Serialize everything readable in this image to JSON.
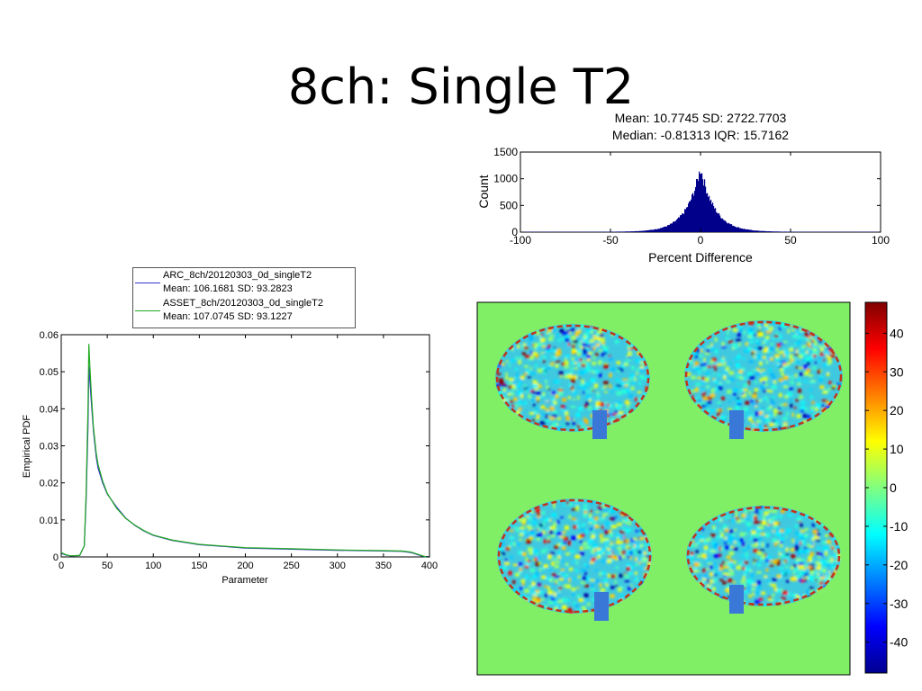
{
  "slide": {
    "title": "8ch: Single T2"
  },
  "chart_data": [
    {
      "id": "pdf",
      "type": "line",
      "xlabel": "Parameter",
      "ylabel": "Empirical PDF",
      "xlim": [
        0,
        400
      ],
      "ylim": [
        0,
        0.06
      ],
      "xticks": [
        0,
        50,
        100,
        150,
        200,
        250,
        300,
        350,
        400
      ],
      "yticks": [
        0,
        0.01,
        0.02,
        0.03,
        0.04,
        0.05,
        0.06
      ],
      "ytick_labels": [
        "0",
        "0.01",
        "0.02",
        "0.03",
        "0.04",
        "0.05",
        "0.06"
      ],
      "grid": false,
      "legend_position": "top-outside",
      "series": [
        {
          "name": "ARC_8ch/20120303_0d_singleT2",
          "stats": "Mean: 106.1681 SD: 93.2823",
          "color": "#3333cc",
          "x": [
            0,
            5,
            10,
            20,
            25,
            27,
            29,
            30,
            31,
            33,
            35,
            38,
            40,
            45,
            50,
            60,
            70,
            80,
            90,
            100,
            120,
            150,
            200,
            250,
            300,
            350,
            370,
            380,
            390,
            395,
            400
          ],
          "y": [
            0.001,
            0.0005,
            0.0003,
            0.0004,
            0.003,
            0.015,
            0.035,
            0.0515,
            0.048,
            0.041,
            0.034,
            0.027,
            0.024,
            0.02,
            0.017,
            0.0135,
            0.0105,
            0.0085,
            0.007,
            0.0058,
            0.0045,
            0.0033,
            0.0024,
            0.0021,
            0.0018,
            0.0016,
            0.0015,
            0.0012,
            0.0004,
            0.0001,
            0
          ]
        },
        {
          "name": "ASSET_8ch/20120303_0d_singleT2",
          "stats": "Mean: 107.0745 SD: 93.1227",
          "color": "#22aa22",
          "x": [
            0,
            5,
            10,
            20,
            25,
            27,
            29,
            30,
            31,
            33,
            35,
            38,
            40,
            45,
            50,
            60,
            70,
            80,
            90,
            100,
            120,
            150,
            200,
            250,
            300,
            350,
            370,
            380,
            390,
            395,
            400
          ],
          "y": [
            0.0012,
            0.0006,
            0.0003,
            0.0004,
            0.003,
            0.017,
            0.04,
            0.0575,
            0.052,
            0.043,
            0.035,
            0.028,
            0.025,
            0.0205,
            0.0172,
            0.0132,
            0.0104,
            0.0086,
            0.0071,
            0.0059,
            0.0046,
            0.0034,
            0.0025,
            0.0022,
            0.0019,
            0.0017,
            0.0016,
            0.0013,
            0.0005,
            0.0001,
            0
          ]
        }
      ]
    },
    {
      "id": "hist",
      "type": "bar",
      "title_lines": [
        "Mean: 10.7745 SD: 2722.7703",
        "Median: -0.81313 IQR: 15.7162"
      ],
      "xlabel": "Percent Difference",
      "ylabel": "Count",
      "xlim": [
        -100,
        100
      ],
      "ylim": [
        0,
        1500
      ],
      "xticks": [
        -100,
        -50,
        0,
        50,
        100
      ],
      "yticks": [
        0,
        500,
        1000,
        1500
      ],
      "grid": false,
      "color": "#00008b",
      "distribution": "laplace-like peaked at 0",
      "peak_count": 1200,
      "scale": 7.8,
      "bin_width": 0.5
    },
    {
      "id": "brain-map",
      "type": "heatmap",
      "background_color": "#80ef66",
      "clim": [
        -48,
        48
      ],
      "colorbar_ticks": [
        40,
        30,
        20,
        10,
        0,
        -10,
        -20,
        -30,
        -40
      ],
      "colormap": "jet",
      "panels": 4
    }
  ]
}
